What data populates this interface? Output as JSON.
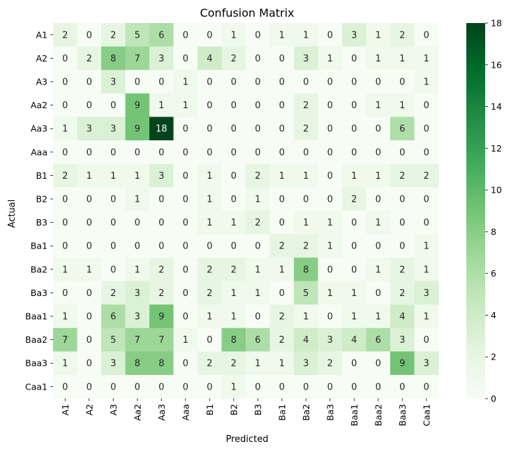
{
  "chart_data": {
    "type": "heatmap",
    "title": "Confusion Matrix",
    "xlabel": "Predicted",
    "ylabel": "Actual",
    "x_categories": [
      "A1",
      "A2",
      "A3",
      "Aa2",
      "Aa3",
      "Aaa",
      "B1",
      "B2",
      "B3",
      "Ba1",
      "Ba2",
      "Ba3",
      "Baa1",
      "Baa2",
      "Baa3",
      "Caa1"
    ],
    "y_categories": [
      "A1",
      "A2",
      "A3",
      "Aa2",
      "Aa3",
      "Aaa",
      "B1",
      "B2",
      "B3",
      "Ba1",
      "Ba2",
      "Ba3",
      "Baa1",
      "Baa2",
      "Baa3",
      "Caa1"
    ],
    "values": [
      [
        2,
        0,
        2,
        5,
        6,
        0,
        0,
        1,
        0,
        1,
        1,
        0,
        3,
        1,
        2,
        0
      ],
      [
        0,
        2,
        8,
        7,
        3,
        0,
        4,
        2,
        0,
        0,
        3,
        1,
        0,
        1,
        1,
        1
      ],
      [
        0,
        0,
        3,
        0,
        0,
        1,
        0,
        0,
        0,
        0,
        0,
        0,
        0,
        0,
        0,
        1
      ],
      [
        0,
        0,
        0,
        9,
        1,
        1,
        0,
        0,
        0,
        0,
        2,
        0,
        0,
        1,
        1,
        0
      ],
      [
        1,
        3,
        3,
        9,
        18,
        0,
        0,
        0,
        0,
        0,
        2,
        0,
        0,
        0,
        6,
        0
      ],
      [
        0,
        0,
        0,
        0,
        0,
        0,
        0,
        0,
        0,
        0,
        0,
        0,
        0,
        0,
        0,
        0
      ],
      [
        2,
        1,
        1,
        1,
        3,
        0,
        1,
        0,
        2,
        1,
        1,
        0,
        1,
        1,
        2,
        2
      ],
      [
        0,
        0,
        0,
        1,
        0,
        0,
        1,
        0,
        1,
        0,
        0,
        0,
        2,
        0,
        0,
        0
      ],
      [
        0,
        0,
        0,
        0,
        0,
        0,
        1,
        1,
        2,
        0,
        1,
        1,
        0,
        1,
        0,
        0
      ],
      [
        0,
        0,
        0,
        0,
        0,
        0,
        0,
        0,
        0,
        2,
        2,
        1,
        0,
        0,
        0,
        1
      ],
      [
        1,
        1,
        0,
        1,
        2,
        0,
        2,
        2,
        1,
        1,
        8,
        0,
        0,
        1,
        2,
        1
      ],
      [
        0,
        0,
        2,
        3,
        2,
        0,
        2,
        1,
        1,
        0,
        5,
        1,
        1,
        0,
        2,
        3
      ],
      [
        1,
        0,
        6,
        3,
        9,
        0,
        1,
        1,
        0,
        2,
        1,
        0,
        1,
        1,
        4,
        1
      ],
      [
        7,
        0,
        5,
        7,
        7,
        1,
        0,
        8,
        6,
        2,
        4,
        3,
        4,
        6,
        3,
        0
      ],
      [
        1,
        0,
        3,
        8,
        8,
        0,
        2,
        2,
        1,
        1,
        3,
        2,
        0,
        0,
        9,
        3
      ],
      [
        0,
        0,
        0,
        0,
        0,
        0,
        0,
        1,
        0,
        0,
        0,
        0,
        0,
        0,
        0,
        0
      ]
    ],
    "colorscale": "Greens",
    "vmin": 0,
    "vmax": 18,
    "colorbar_ticks": [
      0,
      2,
      4,
      6,
      8,
      10,
      12,
      14,
      16,
      18
    ]
  }
}
